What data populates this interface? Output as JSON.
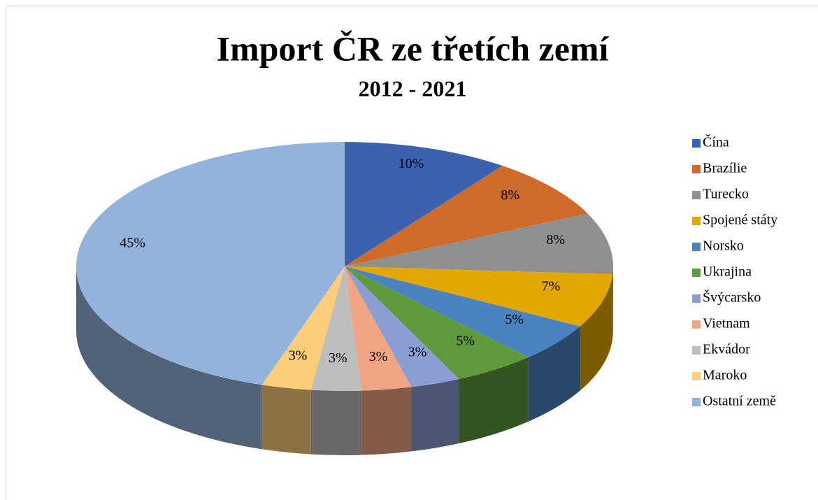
{
  "chart_data": {
    "type": "pie",
    "title": "Import ČR ze třetích zemí",
    "subtitle": "2012 - 2021",
    "categories": [
      "Čína",
      "Brazílie",
      "Turecko",
      "Spojené státy",
      "Norsko",
      "Ukrajina",
      "Švýcarsko",
      "Vietnam",
      "Ekvádor",
      "Maroko",
      "Ostatní země"
    ],
    "values": [
      10,
      8,
      8,
      7,
      5,
      5,
      3,
      3,
      3,
      3,
      45
    ],
    "value_labels": [
      "10%",
      "8%",
      "8%",
      "7%",
      "5%",
      "5%",
      "3%",
      "3%",
      "3%",
      "3%",
      "45%"
    ],
    "colors": [
      "#3a62ae",
      "#d06a28",
      "#8f8f8f",
      "#e3a800",
      "#4a83c0",
      "#5f9a3c",
      "#8b9dd3",
      "#f0a585",
      "#bdbdbd",
      "#fccd7a",
      "#93b3dc"
    ],
    "legend": "right"
  }
}
